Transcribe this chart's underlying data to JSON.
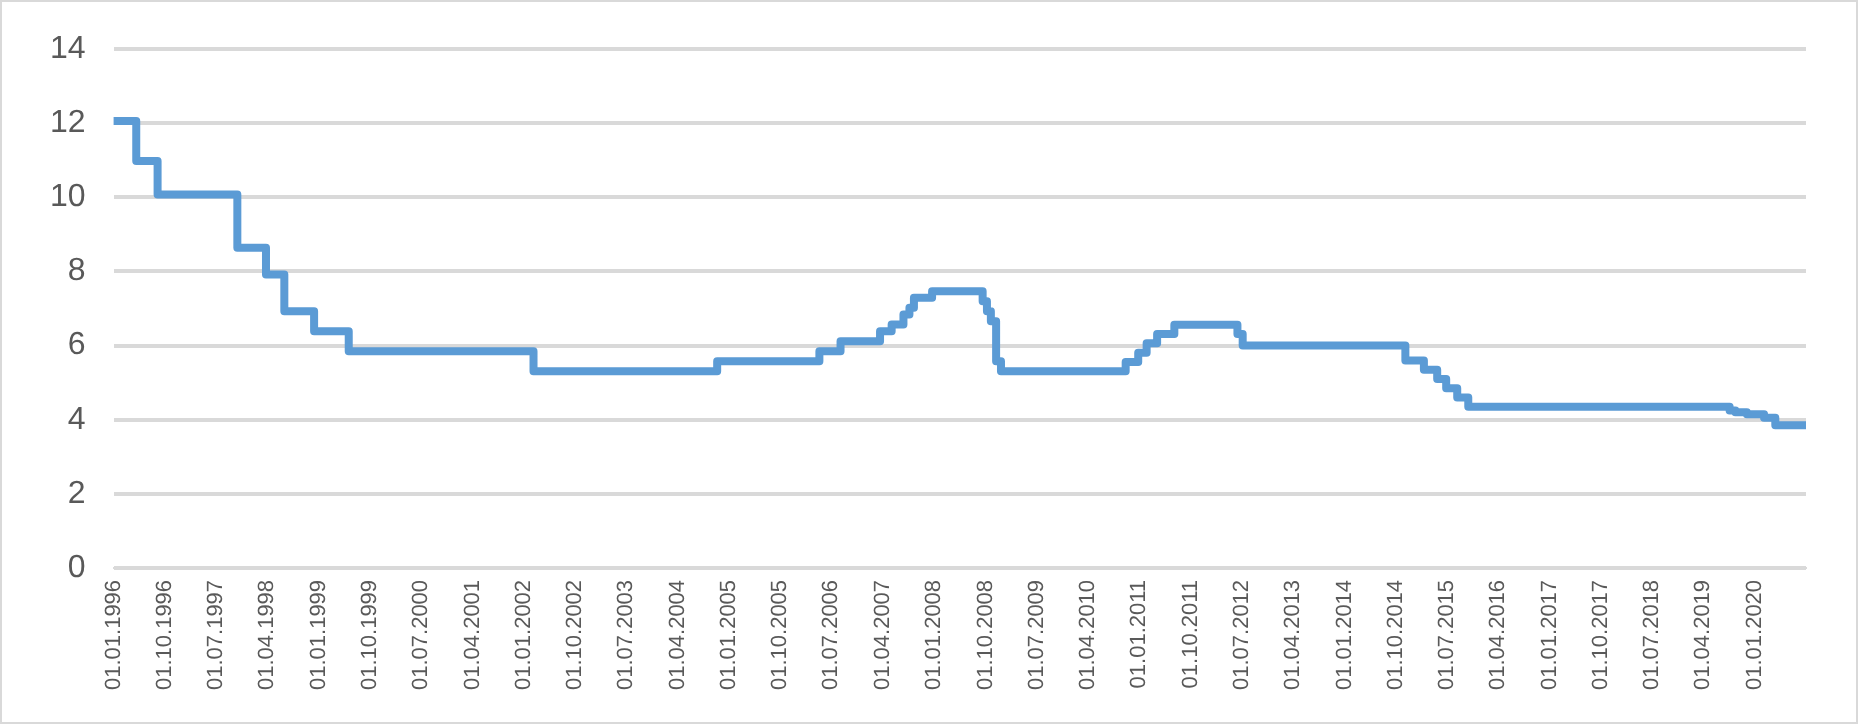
{
  "chart_data": {
    "type": "step",
    "x": [
      "1996-01-01",
      "1996-05-01",
      "1996-08-23",
      "1997-10-23",
      "1998-03-25",
      "1998-07-01",
      "1998-12-07",
      "1999-06-10",
      "2002-02-21",
      "2004-10-29",
      "2006-04-28",
      "2006-08-19",
      "2007-03-18",
      "2007-05-19",
      "2007-07-21",
      "2007-08-22",
      "2007-09-15",
      "2007-12-21",
      "2008-09-16",
      "2008-10-09",
      "2008-10-30",
      "2008-11-27",
      "2008-12-23",
      "2010-10-20",
      "2010-12-26",
      "2011-02-09",
      "2011-04-06",
      "2011-07-07",
      "2012-06-08",
      "2012-07-06",
      "2014-11-22",
      "2015-03-01",
      "2015-05-11",
      "2015-06-28",
      "2015-08-26",
      "2015-10-24",
      "2019-08-20",
      "2019-09-20",
      "2019-11-20",
      "2020-02-20",
      "2020-04-20",
      "2020-10-01"
    ],
    "series": [
      {
        "color": "#5b9bd5",
        "values": [
          12.06,
          10.98,
          10.08,
          8.64,
          7.92,
          6.93,
          6.39,
          5.85,
          5.31,
          5.58,
          5.85,
          6.12,
          6.39,
          6.57,
          6.84,
          7.02,
          7.29,
          7.47,
          7.2,
          6.93,
          6.66,
          5.58,
          5.31,
          5.56,
          5.81,
          6.06,
          6.31,
          6.56,
          6.31,
          6.0,
          5.6,
          5.35,
          5.1,
          4.85,
          4.6,
          4.35,
          4.25,
          4.2,
          4.15,
          4.05,
          3.85,
          3.85
        ]
      }
    ],
    "xlim": [
      "1996-01-01",
      "2020-10-01"
    ],
    "xticks": [
      {
        "value": "1996-01-01",
        "label": "01.01.1996"
      },
      {
        "value": "1996-10-01",
        "label": "01.10.1996"
      },
      {
        "value": "1997-07-01",
        "label": "01.07.1997"
      },
      {
        "value": "1998-04-01",
        "label": "01.04.1998"
      },
      {
        "value": "1999-01-01",
        "label": "01.01.1999"
      },
      {
        "value": "1999-10-01",
        "label": "01.10.1999"
      },
      {
        "value": "2000-07-01",
        "label": "01.07.2000"
      },
      {
        "value": "2001-04-01",
        "label": "01.04.2001"
      },
      {
        "value": "2002-01-01",
        "label": "01.01.2002"
      },
      {
        "value": "2002-10-01",
        "label": "01.10.2002"
      },
      {
        "value": "2003-07-01",
        "label": "01.07.2003"
      },
      {
        "value": "2004-04-01",
        "label": "01.04.2004"
      },
      {
        "value": "2005-01-01",
        "label": "01.01.2005"
      },
      {
        "value": "2005-10-01",
        "label": "01.10.2005"
      },
      {
        "value": "2006-07-01",
        "label": "01.07.2006"
      },
      {
        "value": "2007-04-01",
        "label": "01.04.2007"
      },
      {
        "value": "2008-01-01",
        "label": "01.01.2008"
      },
      {
        "value": "2008-10-01",
        "label": "01.10.2008"
      },
      {
        "value": "2009-07-01",
        "label": "01.07.2009"
      },
      {
        "value": "2010-04-01",
        "label": "01.04.2010"
      },
      {
        "value": "2011-01-01",
        "label": "01.01.2011"
      },
      {
        "value": "2011-10-01",
        "label": "01.10.2011"
      },
      {
        "value": "2012-07-01",
        "label": "01.07.2012"
      },
      {
        "value": "2013-04-01",
        "label": "01.04.2013"
      },
      {
        "value": "2014-01-01",
        "label": "01.01.2014"
      },
      {
        "value": "2014-10-01",
        "label": "01.10.2014"
      },
      {
        "value": "2015-07-01",
        "label": "01.07.2015"
      },
      {
        "value": "2016-04-01",
        "label": "01.04.2016"
      },
      {
        "value": "2017-01-01",
        "label": "01.01.2017"
      },
      {
        "value": "2017-10-01",
        "label": "01.10.2017"
      },
      {
        "value": "2018-07-01",
        "label": "01.07.2018"
      },
      {
        "value": "2019-04-01",
        "label": "01.04.2019"
      },
      {
        "value": "2020-01-01",
        "label": "01.01.2020"
      }
    ],
    "ylim": [
      0,
      14
    ],
    "yticks": [
      0,
      2,
      4,
      6,
      8,
      10,
      12,
      14
    ],
    "grid": "y",
    "legend": false,
    "marker": "none",
    "line_style": "solid"
  }
}
